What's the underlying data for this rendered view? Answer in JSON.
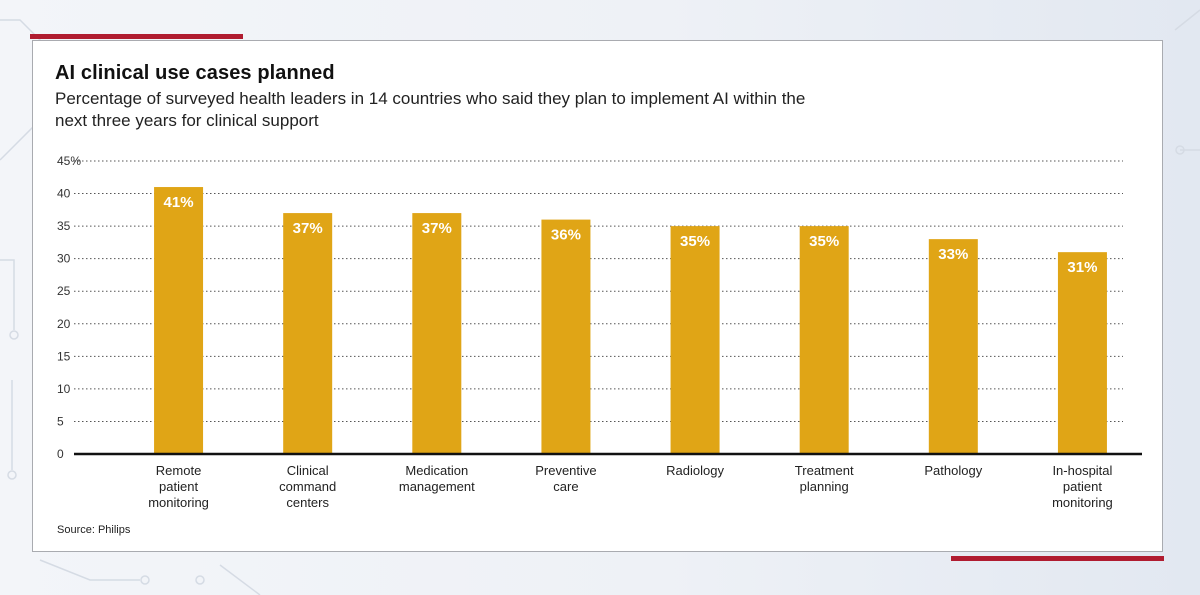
{
  "header": {
    "title": "AI clinical use cases planned",
    "subtitle": "Percentage of surveyed health leaders in 14 countries who said they plan to implement AI within the next three years for clinical support"
  },
  "footer": {
    "source": "Source: Philips"
  },
  "colors": {
    "bar": "#E0A516",
    "accent": "#B01C30",
    "bar_label": "#FFFFFF"
  },
  "chart_data": {
    "type": "bar",
    "title": "AI clinical use cases planned",
    "subtitle": "Percentage of surveyed health leaders in 14 countries who said they plan to implement AI within the next three years for clinical support",
    "categories": [
      [
        "Remote",
        "patient",
        "monitoring"
      ],
      [
        "Clinical",
        "command",
        "centers"
      ],
      [
        "Medication",
        "management"
      ],
      [
        "Preventive",
        "care"
      ],
      [
        "Radiology"
      ],
      [
        "Treatment",
        "planning"
      ],
      [
        "Pathology"
      ],
      [
        "In-hospital",
        "patient",
        "monitoring"
      ]
    ],
    "values": [
      41,
      37,
      37,
      36,
      35,
      35,
      33,
      31
    ],
    "data_labels": [
      "41%",
      "37%",
      "37%",
      "36%",
      "35%",
      "35%",
      "33%",
      "31%"
    ],
    "yticks": [
      0,
      5,
      10,
      15,
      20,
      25,
      30,
      35,
      40,
      45
    ],
    "ytick_labels": [
      "0",
      "5",
      "10",
      "15",
      "20",
      "25",
      "30",
      "35",
      "40",
      "45%"
    ],
    "ylim": [
      0,
      45
    ],
    "grid": true,
    "legend": "none"
  }
}
